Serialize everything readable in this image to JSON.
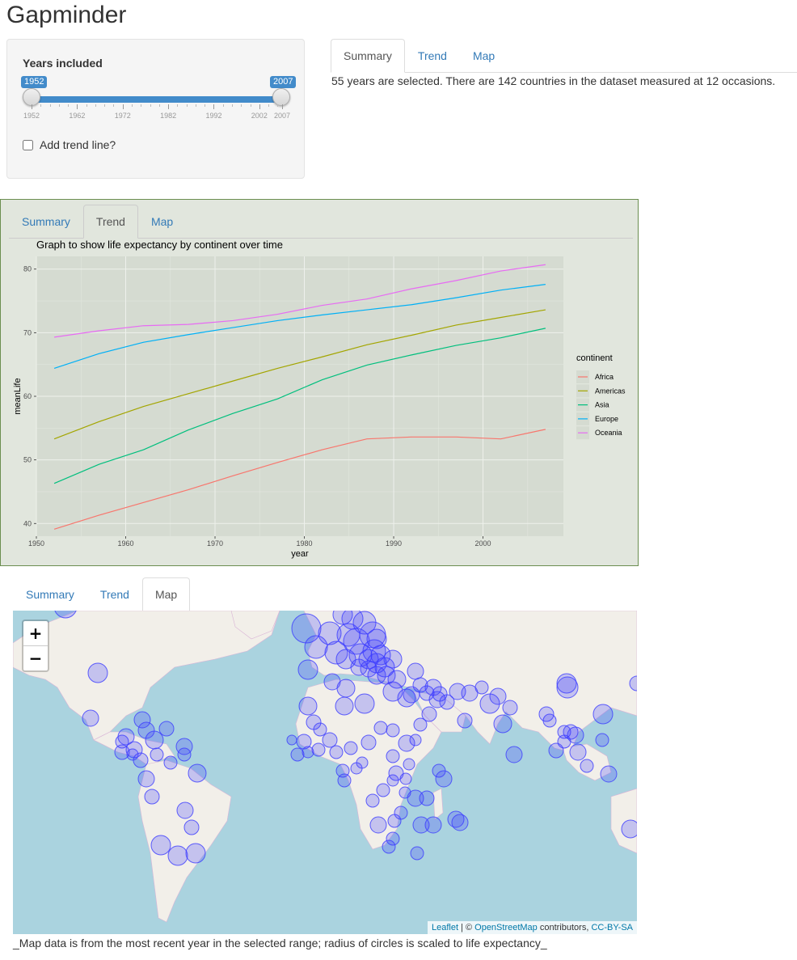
{
  "app": {
    "title": "Gapminder"
  },
  "sidebar": {
    "years_label": "Years included",
    "slider": {
      "min_value": "1952",
      "max_value": "2007",
      "ticks": [
        "1952",
        "1962",
        "1972",
        "1982",
        "1992",
        "2002",
        "2007"
      ]
    },
    "trend_checkbox_label": "Add trend line?"
  },
  "tabs": [
    "Summary",
    "Trend",
    "Map"
  ],
  "summary": {
    "text": "55 years are selected. There are 142 countries in the dataset measured at 12 occasions."
  },
  "chart_data": {
    "type": "line",
    "title": "Graph to show life expectancy by continent over time",
    "xlabel": "year",
    "ylabel": "meanLife",
    "xlim": [
      1950,
      2009
    ],
    "ylim": [
      38,
      82
    ],
    "x_ticks": [
      1950,
      1960,
      1970,
      1980,
      1990,
      2000
    ],
    "y_ticks": [
      40,
      50,
      60,
      70,
      80
    ],
    "legend_title": "continent",
    "legend_position": "right",
    "x": [
      1952,
      1957,
      1962,
      1967,
      1972,
      1977,
      1982,
      1987,
      1992,
      1997,
      2002,
      2007
    ],
    "series": [
      {
        "name": "Africa",
        "color": "#F8766D",
        "values": [
          39.1,
          41.3,
          43.3,
          45.3,
          47.5,
          49.6,
          51.6,
          53.3,
          53.6,
          53.6,
          53.3,
          54.8
        ]
      },
      {
        "name": "Americas",
        "color": "#A3A500",
        "values": [
          53.3,
          56.0,
          58.4,
          60.4,
          62.4,
          64.4,
          66.2,
          68.1,
          69.6,
          71.2,
          72.4,
          73.6
        ]
      },
      {
        "name": "Asia",
        "color": "#00BF7D",
        "values": [
          46.3,
          49.3,
          51.6,
          54.7,
          57.3,
          59.6,
          62.6,
          64.9,
          66.5,
          68.0,
          69.2,
          70.7
        ]
      },
      {
        "name": "Europe",
        "color": "#00B0F6",
        "values": [
          64.4,
          66.7,
          68.5,
          69.7,
          70.8,
          71.9,
          72.8,
          73.6,
          74.4,
          75.5,
          76.7,
          77.6
        ]
      },
      {
        "name": "Oceania",
        "color": "#E76BF3",
        "values": [
          69.3,
          70.3,
          71.1,
          71.3,
          71.9,
          72.9,
          74.3,
          75.3,
          76.9,
          78.2,
          79.7,
          80.7
        ]
      }
    ]
  },
  "map": {
    "zoom_in": "+",
    "zoom_out": "−",
    "attribution": {
      "leaflet": "Leaflet",
      "sep": " | © ",
      "osm": "OpenStreetMap",
      "contributors": " contributors, ",
      "license": "CC-BY-SA"
    },
    "land_color": "#f2efe9",
    "water_color": "#aad3df",
    "circle_color": "#3b3bff"
  },
  "caption": "_Map data is from the most recent year in the selected range; radius of circles is scaled to life expectancy_"
}
